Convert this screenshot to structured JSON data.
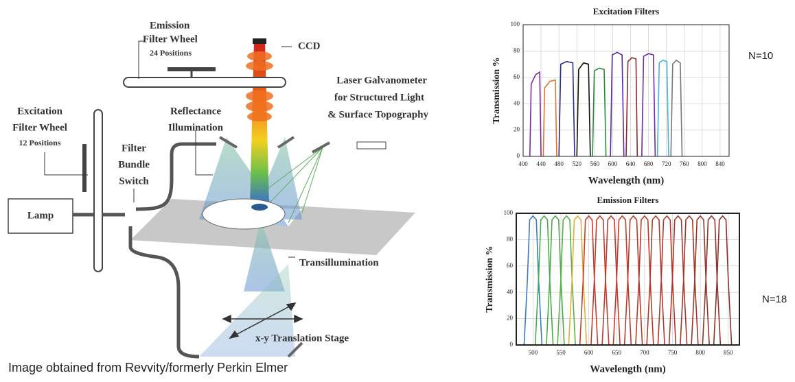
{
  "diagram": {
    "labels": {
      "emission_wheel": [
        "Emission",
        "Filter Wheel",
        "24 Positions"
      ],
      "ccd": [
        "CCD"
      ],
      "laser": [
        "Laser Galvanometer",
        "for Structured Light",
        "& Surface Topography"
      ],
      "excitation_wheel": [
        "Excitation",
        "Filter Wheel",
        "12 Positions"
      ],
      "reflectance": [
        "Reflectance",
        "Illumination"
      ],
      "bundle": [
        "Filter",
        "Bundle",
        "Switch"
      ],
      "lamp": [
        "Lamp"
      ],
      "trans": [
        "Transillumination"
      ],
      "stage": [
        "x-y Translation Stage"
      ]
    }
  },
  "caption": "Image obtained from Revvity/formerly Perkin Elmer",
  "chart_data": [
    {
      "type": "line",
      "title": "Excitation Filters",
      "xlabel": "Wavelength (nm)",
      "ylabel": "Transmission %",
      "annotation": "N=10",
      "xlim": [
        400,
        860
      ],
      "ylim": [
        0,
        100
      ],
      "xticks": [
        400,
        440,
        480,
        520,
        560,
        600,
        640,
        680,
        720,
        760,
        800,
        840
      ],
      "yticks": [
        0,
        20,
        40,
        60,
        80,
        100
      ],
      "grid": true,
      "series": [
        {
          "color": "#7a2a9a",
          "x": [
            415,
            418,
            428,
            437,
            440
          ],
          "values": [
            0,
            55,
            62,
            64,
            0
          ]
        },
        {
          "color": "#e8702a",
          "x": [
            445,
            448,
            460,
            472,
            475
          ],
          "values": [
            0,
            52,
            57,
            58,
            0
          ]
        },
        {
          "color": "#2a2a8a",
          "x": [
            480,
            484,
            497,
            511,
            515
          ],
          "values": [
            0,
            70,
            72,
            71,
            0
          ]
        },
        {
          "color": "#111111",
          "x": [
            520,
            524,
            535,
            546,
            550
          ],
          "values": [
            0,
            66,
            71,
            70,
            0
          ]
        },
        {
          "color": "#2a8a3a",
          "x": [
            555,
            559,
            570,
            581,
            585
          ],
          "values": [
            0,
            65,
            67,
            66,
            0
          ]
        },
        {
          "color": "#5a2a9a",
          "x": [
            595,
            599,
            610,
            621,
            625
          ],
          "values": [
            0,
            77,
            79,
            77,
            0
          ]
        },
        {
          "color": "#8a2a2a",
          "x": [
            630,
            634,
            643,
            652,
            655
          ],
          "values": [
            0,
            72,
            75,
            74,
            0
          ]
        },
        {
          "color": "#6a2aa0",
          "x": [
            665,
            669,
            680,
            691,
            695
          ],
          "values": [
            0,
            76,
            78,
            77,
            0
          ]
        },
        {
          "color": "#4ab0d8",
          "x": [
            700,
            704,
            712,
            721,
            725
          ],
          "values": [
            0,
            71,
            73,
            72,
            0
          ]
        },
        {
          "color": "#777777",
          "x": [
            730,
            734,
            742,
            751,
            755
          ],
          "values": [
            0,
            70,
            73,
            71,
            0
          ]
        }
      ]
    },
    {
      "type": "line",
      "title": "Emission Filters",
      "xlabel": "Wavelength (nm)",
      "ylabel": "Transmission %",
      "annotation": "N=18",
      "xlim": [
        470,
        870
      ],
      "ylim": [
        0,
        100
      ],
      "xticks": [
        500,
        550,
        600,
        650,
        700,
        750,
        800,
        850
      ],
      "yticks": [
        0,
        20,
        40,
        60,
        80,
        100
      ],
      "grid": true,
      "series": [
        {
          "color": "#3a7ac0",
          "x": [
            484,
            490,
            494,
            500,
            506,
            510,
            516
          ],
          "values": [
            0,
            50,
            95,
            98,
            95,
            50,
            0
          ]
        },
        {
          "color": "#4aaa4a",
          "x": [
            504,
            510,
            514,
            520,
            526,
            530,
            536
          ],
          "values": [
            0,
            50,
            95,
            98,
            95,
            50,
            0
          ]
        },
        {
          "color": "#4aaa4a",
          "x": [
            524,
            530,
            534,
            540,
            546,
            550,
            556
          ],
          "values": [
            0,
            50,
            95,
            98,
            95,
            50,
            0
          ]
        },
        {
          "color": "#5ab04a",
          "x": [
            544,
            550,
            554,
            560,
            566,
            570,
            576
          ],
          "values": [
            0,
            50,
            95,
            98,
            95,
            50,
            0
          ]
        },
        {
          "color": "#e0b030",
          "x": [
            564,
            570,
            574,
            580,
            586,
            590,
            596
          ],
          "values": [
            0,
            50,
            95,
            98,
            95,
            50,
            0
          ]
        },
        {
          "color": "#c83a2a",
          "x": [
            584,
            590,
            594,
            600,
            606,
            610,
            616
          ],
          "values": [
            0,
            50,
            95,
            98,
            95,
            50,
            0
          ]
        },
        {
          "color": "#c83a2a",
          "x": [
            604,
            610,
            614,
            620,
            626,
            630,
            636
          ],
          "values": [
            0,
            50,
            95,
            98,
            95,
            50,
            0
          ]
        },
        {
          "color": "#c03a2a",
          "x": [
            624,
            630,
            634,
            640,
            646,
            650,
            656
          ],
          "values": [
            0,
            50,
            95,
            98,
            95,
            50,
            0
          ]
        },
        {
          "color": "#c03a2a",
          "x": [
            644,
            650,
            654,
            660,
            666,
            670,
            676
          ],
          "values": [
            0,
            50,
            95,
            98,
            95,
            50,
            0
          ]
        },
        {
          "color": "#b83a2a",
          "x": [
            664,
            670,
            674,
            680,
            686,
            690,
            696
          ],
          "values": [
            0,
            50,
            95,
            98,
            95,
            50,
            0
          ]
        },
        {
          "color": "#b83a2a",
          "x": [
            684,
            690,
            694,
            700,
            706,
            710,
            716
          ],
          "values": [
            0,
            50,
            95,
            98,
            95,
            50,
            0
          ]
        },
        {
          "color": "#b0382a",
          "x": [
            704,
            710,
            714,
            720,
            726,
            730,
            736
          ],
          "values": [
            0,
            50,
            95,
            98,
            95,
            50,
            0
          ]
        },
        {
          "color": "#b0382a",
          "x": [
            724,
            730,
            734,
            740,
            746,
            750,
            756
          ],
          "values": [
            0,
            50,
            95,
            98,
            95,
            50,
            0
          ]
        },
        {
          "color": "#a8362a",
          "x": [
            744,
            750,
            754,
            760,
            766,
            770,
            776
          ],
          "values": [
            0,
            50,
            95,
            98,
            95,
            50,
            0
          ]
        },
        {
          "color": "#a0362a",
          "x": [
            764,
            770,
            774,
            780,
            786,
            790,
            796
          ],
          "values": [
            0,
            50,
            95,
            98,
            95,
            50,
            0
          ]
        },
        {
          "color": "#98342a",
          "x": [
            784,
            790,
            794,
            800,
            806,
            810,
            816
          ],
          "values": [
            0,
            50,
            95,
            98,
            95,
            50,
            0
          ]
        },
        {
          "color": "#90322a",
          "x": [
            804,
            810,
            814,
            820,
            826,
            830,
            836
          ],
          "values": [
            0,
            50,
            95,
            98,
            95,
            50,
            0
          ]
        },
        {
          "color": "#88302a",
          "x": [
            824,
            830,
            834,
            840,
            846,
            850,
            856
          ],
          "values": [
            0,
            50,
            95,
            98,
            95,
            50,
            0
          ]
        }
      ]
    }
  ]
}
